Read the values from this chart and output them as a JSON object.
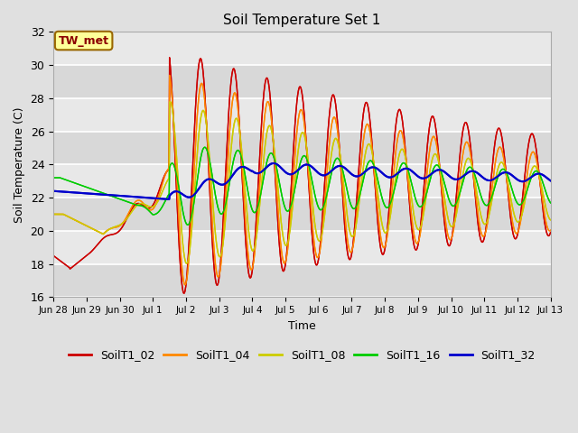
{
  "title": "Soil Temperature Set 1",
  "xlabel": "Time",
  "ylabel": "Soil Temperature (C)",
  "ylim": [
    16,
    32
  ],
  "background_color": "#e0e0e0",
  "plot_bg_color": "#e0e0e0",
  "annotation_text": "TW_met",
  "annotation_bg": "#ffff99",
  "annotation_border": "#cc8800",
  "legend_labels": [
    "SoilT1_02",
    "SoilT1_04",
    "SoilT1_08",
    "SoilT1_16",
    "SoilT1_32"
  ],
  "colors": {
    "SoilT1_02": "#cc0000",
    "SoilT1_04": "#ff8800",
    "SoilT1_08": "#cccc00",
    "SoilT1_16": "#00cc00",
    "SoilT1_32": "#0000cc"
  },
  "xtick_labels": [
    "Jun 28",
    "Jun 29",
    "Jun 30",
    "Jul 1",
    "Jul 2",
    "Jul 3",
    "Jul 4",
    "Jul 5",
    "Jul 6",
    "Jul 7",
    "Jul 8",
    "Jul 9",
    "Jul 10",
    "Jul 11",
    "Jul 12",
    "Jul 13"
  ],
  "num_points": 16,
  "figsize": [
    6.4,
    4.8
  ],
  "dpi": 100
}
